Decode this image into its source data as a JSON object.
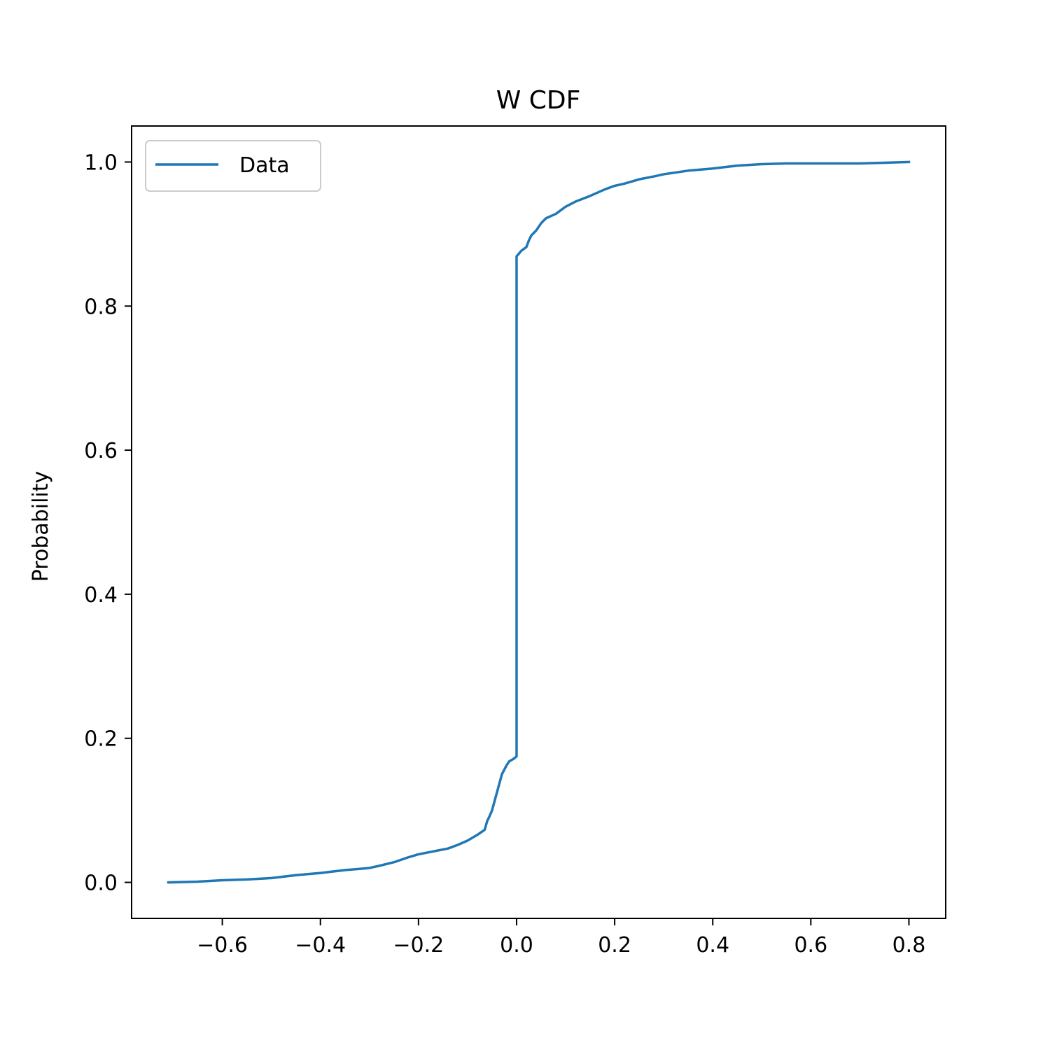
{
  "chart_data": {
    "type": "line",
    "title": "W CDF",
    "xlabel": "",
    "ylabel": "Probability",
    "xlim": [
      -0.785,
      0.875
    ],
    "ylim": [
      -0.05,
      1.05
    ],
    "xticks": [
      -0.6,
      -0.4,
      -0.2,
      0.0,
      0.2,
      0.4,
      0.6,
      0.8
    ],
    "xtick_labels": [
      "−0.6",
      "−0.4",
      "−0.2",
      "0.0",
      "0.2",
      "0.4",
      "0.6",
      "0.8"
    ],
    "yticks": [
      0.0,
      0.2,
      0.4,
      0.6,
      0.8,
      1.0
    ],
    "ytick_labels": [
      "0.0",
      "0.2",
      "0.4",
      "0.6",
      "0.8",
      "1.0"
    ],
    "grid": false,
    "legend_position": "upper-left",
    "color": "#1f77b4",
    "series": [
      {
        "name": "Data",
        "x": [
          -0.71,
          -0.65,
          -0.6,
          -0.55,
          -0.5,
          -0.45,
          -0.4,
          -0.35,
          -0.3,
          -0.28,
          -0.25,
          -0.22,
          -0.2,
          -0.17,
          -0.14,
          -0.12,
          -0.1,
          -0.08,
          -0.065,
          -0.06,
          -0.055,
          -0.05,
          -0.04,
          -0.03,
          -0.02,
          -0.015,
          -0.01,
          -0.005,
          0.0,
          0.0,
          0.005,
          0.01,
          0.02,
          0.025,
          0.03,
          0.04,
          0.05,
          0.06,
          0.08,
          0.1,
          0.12,
          0.15,
          0.18,
          0.2,
          0.22,
          0.25,
          0.28,
          0.3,
          0.35,
          0.4,
          0.45,
          0.5,
          0.55,
          0.6,
          0.65,
          0.7,
          0.75,
          0.8
        ],
        "y": [
          0.0,
          0.001,
          0.003,
          0.004,
          0.006,
          0.01,
          0.013,
          0.017,
          0.02,
          0.023,
          0.028,
          0.035,
          0.039,
          0.043,
          0.047,
          0.052,
          0.058,
          0.066,
          0.073,
          0.085,
          0.092,
          0.1,
          0.125,
          0.15,
          0.163,
          0.168,
          0.17,
          0.172,
          0.175,
          0.869,
          0.873,
          0.877,
          0.882,
          0.891,
          0.898,
          0.905,
          0.915,
          0.922,
          0.928,
          0.938,
          0.945,
          0.953,
          0.962,
          0.967,
          0.97,
          0.976,
          0.98,
          0.983,
          0.988,
          0.991,
          0.995,
          0.997,
          0.998,
          0.998,
          0.998,
          0.998,
          0.999,
          1.0
        ]
      }
    ]
  }
}
